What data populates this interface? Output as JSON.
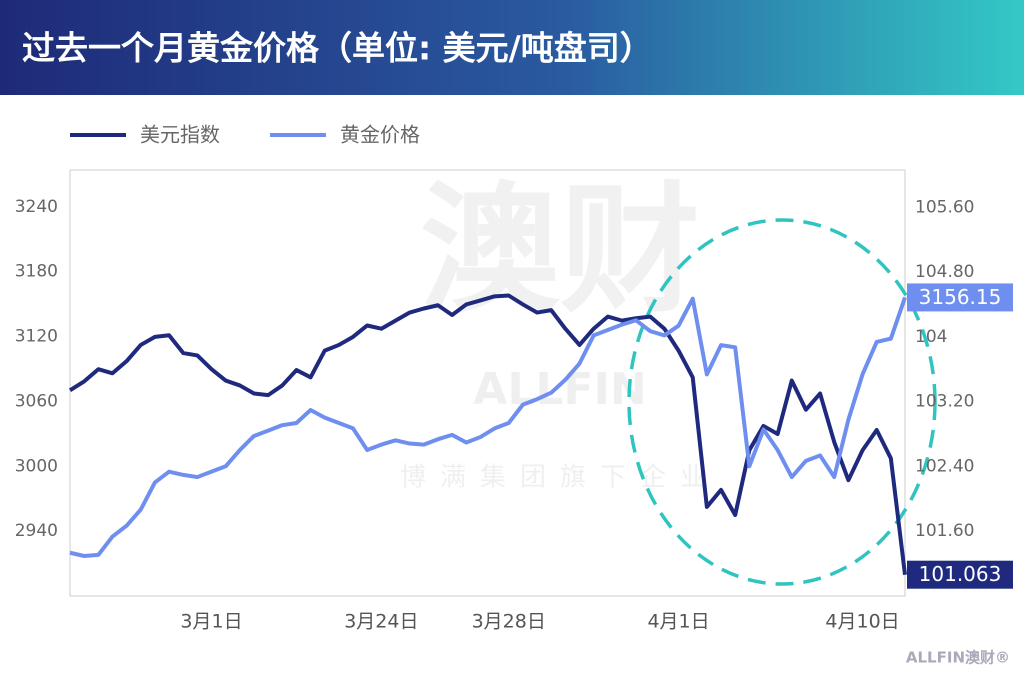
{
  "chart_data": {
    "type": "line",
    "title": "过去一个月黄金价格（单位: 美元/吨盘司）",
    "watermark": "澳财",
    "watermark_sub": "ALLFIN",
    "watermark_tag": "博满集团旗下企业",
    "brand": "ALLFIN澳财®",
    "categories": [
      null,
      null,
      null,
      null,
      null,
      null,
      null,
      null,
      null,
      null,
      "3月1日",
      null,
      null,
      null,
      null,
      null,
      null,
      null,
      null,
      null,
      null,
      null,
      "3月24日",
      null,
      null,
      null,
      null,
      null,
      null,
      null,
      null,
      "3月28日",
      null,
      null,
      null,
      null,
      null,
      null,
      null,
      null,
      null,
      null,
      null,
      "4月1日",
      null,
      null,
      null,
      null,
      null,
      null,
      null,
      null,
      null,
      null,
      null,
      null,
      "4月10日",
      null,
      null,
      null
    ],
    "series": [
      {
        "name": "美元指数",
        "color": "#1f2a7e",
        "axis": "y2",
        "values": [
          103.34,
          103.45,
          103.6,
          103.55,
          103.7,
          103.9,
          104.0,
          104.02,
          103.8,
          103.77,
          103.6,
          103.46,
          103.4,
          103.3,
          103.28,
          103.4,
          103.59,
          103.5,
          103.83,
          103.9,
          104.0,
          104.14,
          104.1,
          104.2,
          104.3,
          104.35,
          104.39,
          104.27,
          104.4,
          104.45,
          104.5,
          104.51,
          104.4,
          104.3,
          104.33,
          104.1,
          103.9,
          104.1,
          104.25,
          104.2,
          104.23,
          104.25,
          104.1,
          103.83,
          103.5,
          101.9,
          102.11,
          101.8,
          102.6,
          102.9,
          102.8,
          103.46,
          103.1,
          103.3,
          102.7,
          102.23,
          102.6,
          102.85,
          102.5,
          101.063
        ]
      },
      {
        "name": "黄金价格",
        "color": "#6f8ff0",
        "values": [
          2920,
          2917,
          2918,
          2935,
          2945,
          2960,
          2985,
          2995,
          2992,
          2990,
          2995,
          3000,
          3015,
          3028,
          3033,
          3038,
          3040,
          3052,
          3045,
          3040,
          3035,
          3015,
          3020,
          3024,
          3021,
          3020,
          3025,
          3029,
          3022,
          3027,
          3035,
          3040,
          3057,
          3062,
          3068,
          3080,
          3095,
          3121,
          3126,
          3131,
          3135,
          3125,
          3121,
          3130,
          3155,
          3085,
          3112,
          3110,
          3000,
          3034,
          3015,
          2990,
          3005,
          3010,
          2990,
          3043,
          3085,
          3115,
          3118,
          3156.15
        ]
      }
    ],
    "ylim": [
      2880,
      3274
    ],
    "yticks": [
      2940,
      3000,
      3060,
      3120,
      3180,
      3240
    ],
    "y2lim": [
      100.8,
      106.06
    ],
    "y2ticks": [
      {
        "value": 101.6,
        "label": "101.60"
      },
      {
        "value": 102.4,
        "label": "102.40"
      },
      {
        "value": 103.2,
        "label": "103.20"
      },
      104,
      {
        "value": 104.8,
        "label": "104.80"
      },
      {
        "value": 105.6,
        "label": "105.60"
      }
    ],
    "grid": false
  }
}
